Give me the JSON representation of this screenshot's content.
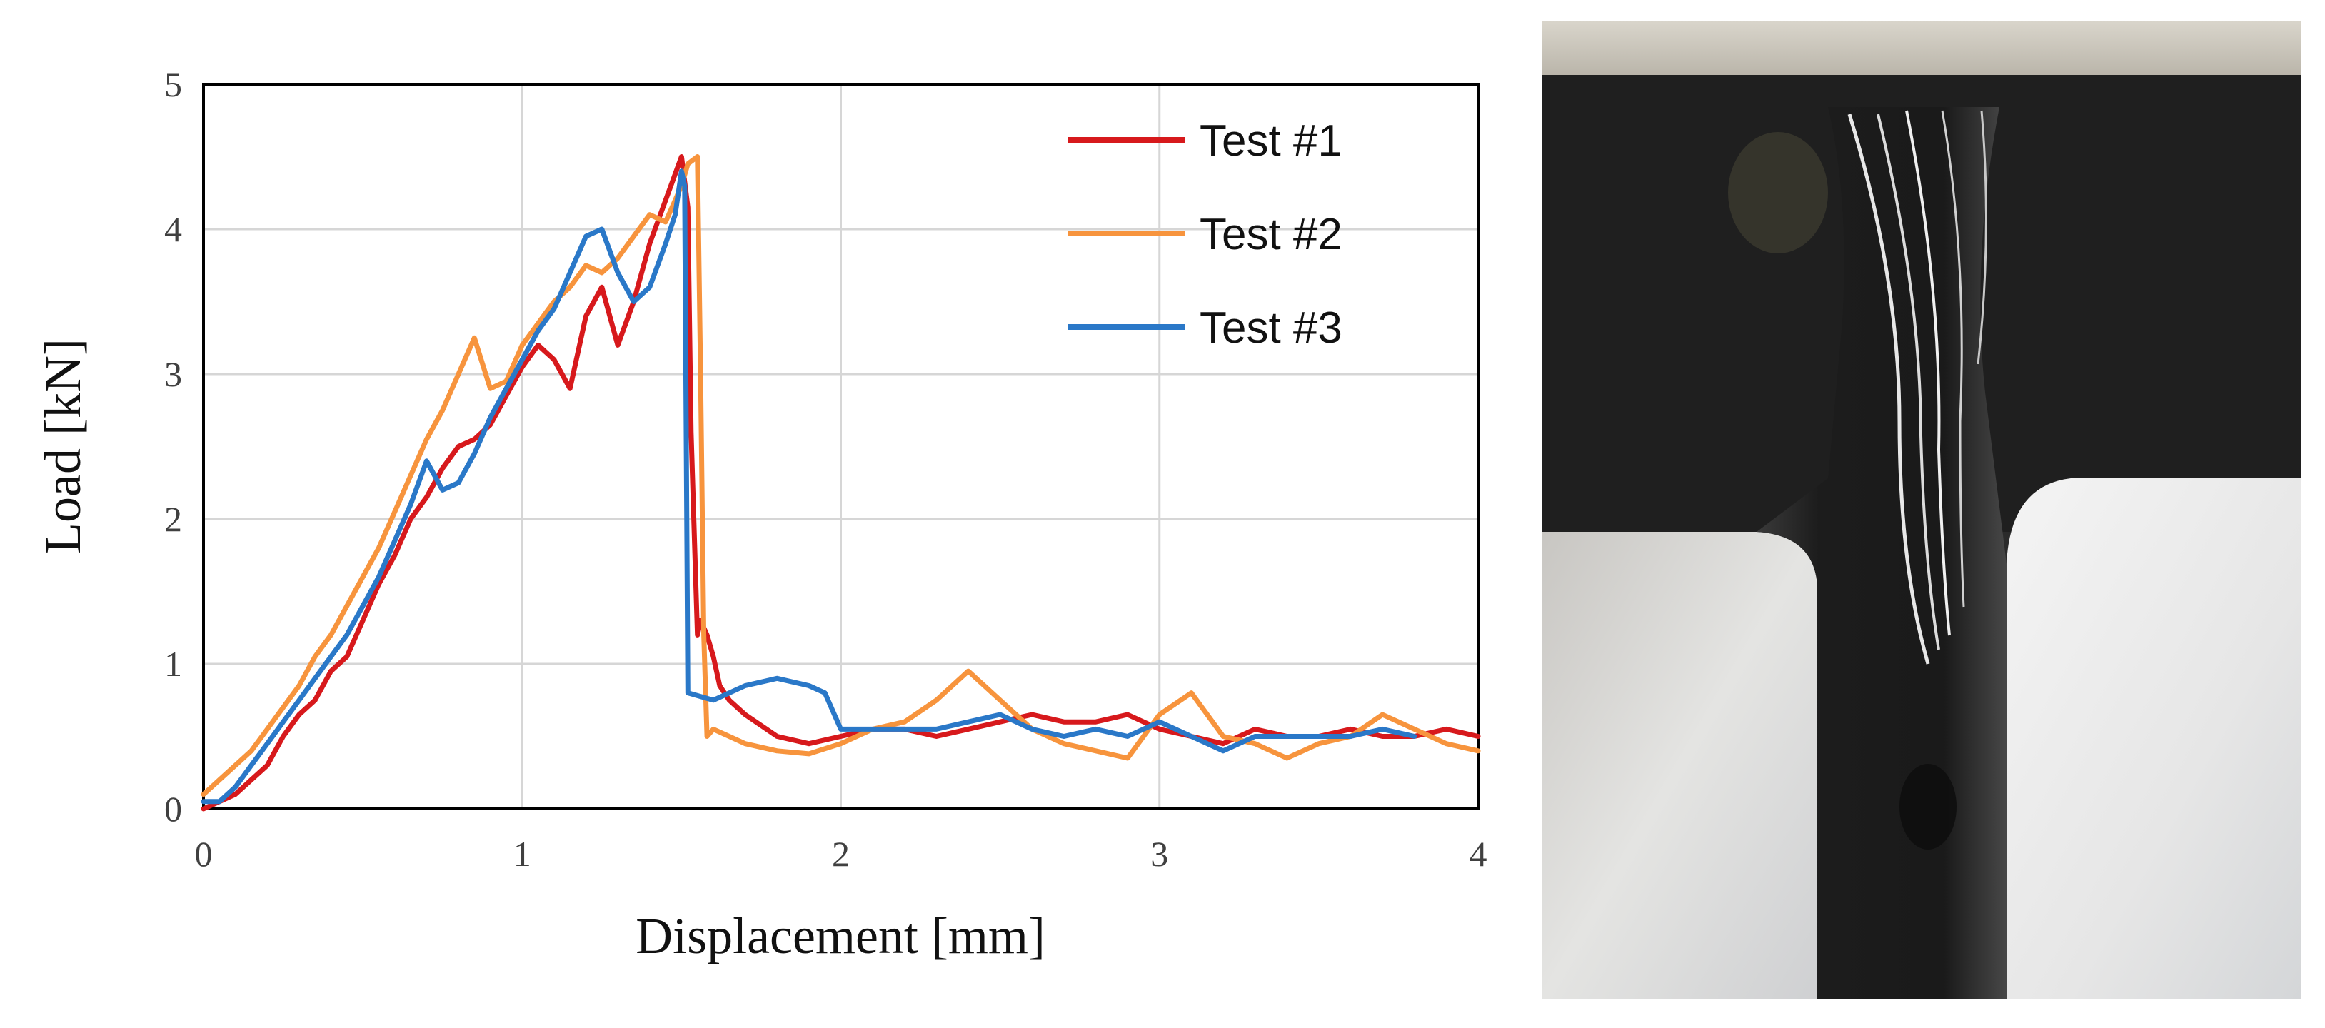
{
  "chart_data": {
    "type": "line",
    "title": "",
    "xlabel": "Displacement [mm]",
    "ylabel": "Load [kN]",
    "xlim": [
      0,
      4
    ],
    "ylim": [
      0,
      5
    ],
    "xticks": [
      "0",
      "1",
      "2",
      "3",
      "4"
    ],
    "yticks": [
      "0",
      "1",
      "2",
      "3",
      "4",
      "5"
    ],
    "grid": true,
    "legend": "top-right",
    "series": [
      {
        "name": "Test #1",
        "color": "#d7191c",
        "x": [
          0,
          0.05,
          0.1,
          0.15,
          0.2,
          0.25,
          0.3,
          0.35,
          0.4,
          0.45,
          0.5,
          0.55,
          0.6,
          0.65,
          0.7,
          0.75,
          0.8,
          0.85,
          0.9,
          0.95,
          1.0,
          1.05,
          1.1,
          1.15,
          1.2,
          1.25,
          1.3,
          1.35,
          1.4,
          1.45,
          1.5,
          1.52,
          1.53,
          1.55,
          1.56,
          1.58,
          1.6,
          1.62,
          1.65,
          1.7,
          1.8,
          1.9,
          2.0,
          2.1,
          2.2,
          2.3,
          2.4,
          2.5,
          2.6,
          2.7,
          2.8,
          2.9,
          3.0,
          3.1,
          3.2,
          3.3,
          3.4,
          3.5,
          3.6,
          3.7,
          3.8,
          3.9,
          4.0
        ],
        "y": [
          0,
          0.05,
          0.1,
          0.2,
          0.3,
          0.5,
          0.65,
          0.75,
          0.95,
          1.05,
          1.3,
          1.55,
          1.75,
          2.0,
          2.15,
          2.35,
          2.5,
          2.55,
          2.65,
          2.85,
          3.05,
          3.2,
          3.1,
          2.9,
          3.4,
          3.6,
          3.2,
          3.5,
          3.9,
          4.2,
          4.5,
          4.15,
          2.6,
          1.2,
          1.3,
          1.2,
          1.05,
          0.85,
          0.75,
          0.65,
          0.5,
          0.45,
          0.5,
          0.55,
          0.55,
          0.5,
          0.55,
          0.6,
          0.65,
          0.6,
          0.6,
          0.65,
          0.55,
          0.5,
          0.45,
          0.55,
          0.5,
          0.5,
          0.55,
          0.5,
          0.5,
          0.55,
          0.5
        ]
      },
      {
        "name": "Test #2",
        "color": "#f7943d",
        "x": [
          0,
          0.05,
          0.1,
          0.15,
          0.2,
          0.25,
          0.3,
          0.35,
          0.4,
          0.45,
          0.5,
          0.55,
          0.6,
          0.65,
          0.7,
          0.75,
          0.8,
          0.85,
          0.9,
          0.95,
          1.0,
          1.05,
          1.1,
          1.15,
          1.2,
          1.25,
          1.3,
          1.35,
          1.4,
          1.45,
          1.5,
          1.52,
          1.55,
          1.56,
          1.57,
          1.58,
          1.6,
          1.7,
          1.8,
          1.9,
          2.0,
          2.1,
          2.2,
          2.3,
          2.4,
          2.5,
          2.6,
          2.7,
          2.8,
          2.9,
          3.0,
          3.1,
          3.2,
          3.3,
          3.4,
          3.5,
          3.6,
          3.7,
          3.8,
          3.9,
          4.0
        ],
        "y": [
          0.1,
          0.2,
          0.3,
          0.4,
          0.55,
          0.7,
          0.85,
          1.05,
          1.2,
          1.4,
          1.6,
          1.8,
          2.05,
          2.3,
          2.55,
          2.75,
          3.0,
          3.25,
          2.9,
          2.95,
          3.2,
          3.35,
          3.5,
          3.6,
          3.75,
          3.7,
          3.8,
          3.95,
          4.1,
          4.05,
          4.3,
          4.45,
          4.5,
          3.0,
          1.2,
          0.5,
          0.55,
          0.45,
          0.4,
          0.38,
          0.45,
          0.55,
          0.6,
          0.75,
          0.95,
          0.75,
          0.55,
          0.45,
          0.4,
          0.35,
          0.65,
          0.8,
          0.5,
          0.45,
          0.35,
          0.45,
          0.5,
          0.65,
          0.55,
          0.45,
          0.4
        ]
      },
      {
        "name": "Test #3",
        "color": "#2a78c8",
        "x": [
          0,
          0.05,
          0.1,
          0.15,
          0.2,
          0.25,
          0.3,
          0.35,
          0.4,
          0.45,
          0.5,
          0.55,
          0.6,
          0.65,
          0.7,
          0.75,
          0.8,
          0.85,
          0.9,
          0.95,
          1.0,
          1.05,
          1.1,
          1.15,
          1.2,
          1.25,
          1.3,
          1.35,
          1.4,
          1.45,
          1.48,
          1.5,
          1.51,
          1.52,
          1.6,
          1.7,
          1.8,
          1.9,
          1.95,
          2.0,
          2.1,
          2.2,
          2.3,
          2.4,
          2.5,
          2.6,
          2.7,
          2.8,
          2.9,
          3.0,
          3.1,
          3.2,
          3.3,
          3.4,
          3.5,
          3.6,
          3.7,
          3.8
        ],
        "y": [
          0.05,
          0.05,
          0.15,
          0.3,
          0.45,
          0.6,
          0.75,
          0.9,
          1.05,
          1.2,
          1.4,
          1.6,
          1.85,
          2.1,
          2.4,
          2.2,
          2.25,
          2.45,
          2.7,
          2.9,
          3.1,
          3.3,
          3.45,
          3.7,
          3.95,
          4.0,
          3.7,
          3.5,
          3.6,
          3.9,
          4.1,
          4.4,
          4.3,
          0.8,
          0.75,
          0.85,
          0.9,
          0.85,
          0.8,
          0.55,
          0.55,
          0.55,
          0.55,
          0.6,
          0.65,
          0.55,
          0.5,
          0.55,
          0.5,
          0.6,
          0.5,
          0.4,
          0.5,
          0.5,
          0.5,
          0.5,
          0.55,
          0.5
        ]
      }
    ]
  },
  "photo": {
    "subject": "fractured-specimen-photo"
  }
}
